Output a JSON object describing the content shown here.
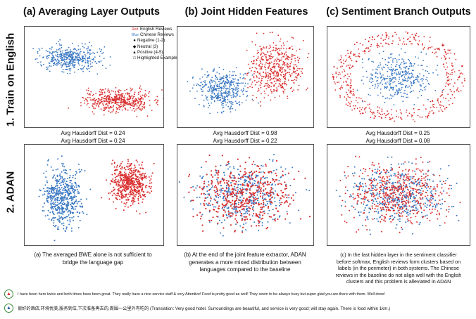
{
  "columns": [
    {
      "title": "(a) Averaging Layer Outputs"
    },
    {
      "title": "(b) Joint Hidden Features"
    },
    {
      "title": "(c) Sentiment Branch Outputs"
    }
  ],
  "rows": [
    {
      "label": "1. Train on English"
    },
    {
      "label": "2. ADAN"
    }
  ],
  "distances": [
    {
      "line1": "Avg Hausdorff Dist = 0.24",
      "line2": "Avg Hausdorff Dist = 0.24"
    },
    {
      "line1": "Avg Hausdorff Dist = 0.98",
      "line2": "Avg Hausdorff Dist = 0.22"
    },
    {
      "line1": "Avg Hausdorff Dist = 0.25",
      "line2": "Avg Hausdorff Dist = 0.08"
    }
  ],
  "legend": {
    "english": {
      "swatch": "Red",
      "label": "English Reviews",
      "color": "#d93030"
    },
    "chinese": {
      "swatch": "Blue",
      "label": "Chinese Reviews",
      "color": "#3a78c2"
    },
    "negative": {
      "marker": "●",
      "label": "Negative (1-2)"
    },
    "neutral": {
      "marker": "◆",
      "label": "Neutral (3)"
    },
    "positive": {
      "marker": "▲",
      "label": "Positive (4-5)"
    },
    "highlighted": {
      "marker": "□",
      "label": "Highlighted Example"
    }
  },
  "captions": [
    [
      "(a) The averaged BWE alone is not sufficient to",
      "bridge the language gap"
    ],
    [
      "(b) At the end of the joint feature extractor, ADAN",
      "generates a more mixed distribution between",
      "languages compared to the baseline"
    ],
    [
      "(c) In the last hidden layer in the sentiment classifier",
      "before softmax, English reviews form clusters based on",
      "labels (in the perimeter) in both systems. The Chinese",
      "reviews in the baseline do not align well with the English",
      "clusters and this problem is alleviated in ADAN"
    ]
  ],
  "examples": [
    {
      "text": "I have been here twice and both times have been great. They really have a nice service staff & very Attentive! Food is pretty good as well! They seem to be always busy but super glad you are there with them. Well done!",
      "marker_color": "#d93030",
      "ring_color": "#3a8a3a"
    },
    {
      "text": "很好的酒店,环境优美,服务到位,下次准备再去的,周围一公里外有吃的 (Translation: Very good hotel. Surroundings are beautiful, and service is very good; will stay again. There is food within 1km.)",
      "marker_color": "#2a52a8",
      "ring_color": "#3a8a3a"
    }
  ]
}
